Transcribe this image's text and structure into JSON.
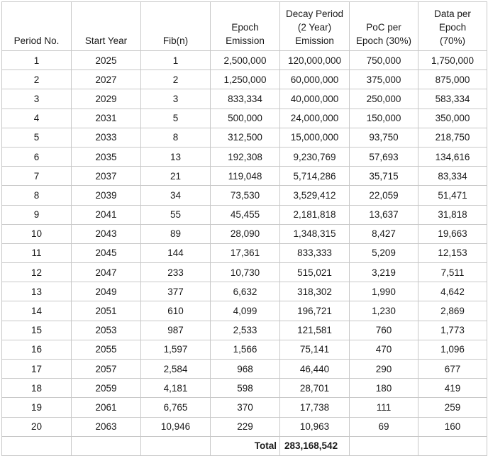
{
  "headers": [
    "Period No.",
    "Start Year",
    "Fib(n)",
    "Epoch Emission",
    "Decay Period (2 Year) Emission",
    "PoC per Epoch (30%)",
    "Data per Epoch (70%)"
  ],
  "rows": [
    [
      "1",
      "2025",
      "1",
      "2,500,000",
      "120,000,000",
      "750,000",
      "1,750,000"
    ],
    [
      "2",
      "2027",
      "2",
      "1,250,000",
      "60,000,000",
      "375,000",
      "875,000"
    ],
    [
      "3",
      "2029",
      "3",
      "833,334",
      "40,000,000",
      "250,000",
      "583,334"
    ],
    [
      "4",
      "2031",
      "5",
      "500,000",
      "24,000,000",
      "150,000",
      "350,000"
    ],
    [
      "5",
      "2033",
      "8",
      "312,500",
      "15,000,000",
      "93,750",
      "218,750"
    ],
    [
      "6",
      "2035",
      "13",
      "192,308",
      "9,230,769",
      "57,693",
      "134,616"
    ],
    [
      "7",
      "2037",
      "21",
      "119,048",
      "5,714,286",
      "35,715",
      "83,334"
    ],
    [
      "8",
      "2039",
      "34",
      "73,530",
      "3,529,412",
      "22,059",
      "51,471"
    ],
    [
      "9",
      "2041",
      "55",
      "45,455",
      "2,181,818",
      "13,637",
      "31,818"
    ],
    [
      "10",
      "2043",
      "89",
      "28,090",
      "1,348,315",
      "8,427",
      "19,663"
    ],
    [
      "11",
      "2045",
      "144",
      "17,361",
      "833,333",
      "5,209",
      "12,153"
    ],
    [
      "12",
      "2047",
      "233",
      "10,730",
      "515,021",
      "3,219",
      "7,511"
    ],
    [
      "13",
      "2049",
      "377",
      "6,632",
      "318,302",
      "1,990",
      "4,642"
    ],
    [
      "14",
      "2051",
      "610",
      "4,099",
      "196,721",
      "1,230",
      "2,869"
    ],
    [
      "15",
      "2053",
      "987",
      "2,533",
      "121,581",
      "760",
      "1,773"
    ],
    [
      "16",
      "2055",
      "1,597",
      "1,566",
      "75,141",
      "470",
      "1,096"
    ],
    [
      "17",
      "2057",
      "2,584",
      "968",
      "46,440",
      "290",
      "677"
    ],
    [
      "18",
      "2059",
      "4,181",
      "598",
      "28,701",
      "180",
      "419"
    ],
    [
      "19",
      "2061",
      "6,765",
      "370",
      "17,738",
      "111",
      "259"
    ],
    [
      "20",
      "2063",
      "10,946",
      "229",
      "10,963",
      "69",
      "160"
    ]
  ],
  "footer": {
    "total_label": "Total",
    "total_value": "283,168,542"
  }
}
